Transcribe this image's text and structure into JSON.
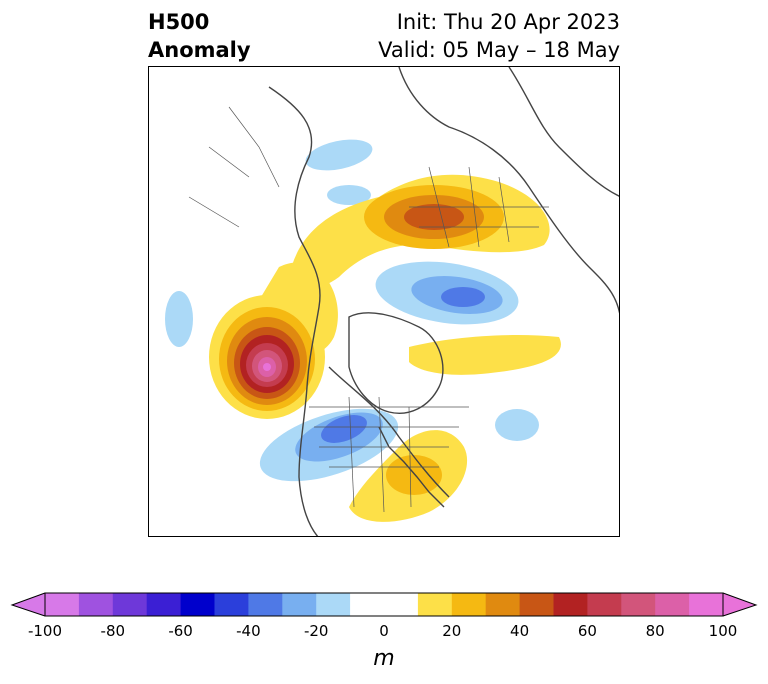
{
  "header": {
    "title_line1": "H500",
    "title_line2": "Anomaly",
    "init_text": "Init: Thu 20 Apr 2023",
    "valid_text": "Valid: 05 May – 18 May"
  },
  "colorbar": {
    "ticks": [
      "-100",
      "-80",
      "-60",
      "-40",
      "-20",
      "0",
      "20",
      "40",
      "60",
      "80",
      "100"
    ],
    "units": "m",
    "min": -100,
    "max": 100,
    "step": 10,
    "extend": "both",
    "colors": [
      "#d779e8",
      "#9f52e0",
      "#6e38d9",
      "#3b1fd4",
      "#0000cc",
      "#2b3fdb",
      "#4f79e6",
      "#78aff0",
      "#abd9f7",
      "#ffffff",
      "#ffffff",
      "#fde048",
      "#f5b912",
      "#e08a10",
      "#c85615",
      "#b22222",
      "#c43c4f",
      "#d2557b",
      "#dc60a8",
      "#e872d9"
    ]
  },
  "map": {
    "projection": "north-polar-stereographic",
    "variable": "500 hPa geopotential height anomaly",
    "features": [
      {
        "name": "strong positive anomaly",
        "region": "northeast Pacific / Gulf of Alaska",
        "peak_m": 95
      },
      {
        "name": "positive anomaly",
        "region": "Scandinavia / western Russia",
        "peak_m": 45
      },
      {
        "name": "negative anomaly",
        "region": "western / central Canada & US",
        "peak_m": -50
      },
      {
        "name": "negative anomaly",
        "region": "Arctic / Barents region",
        "peak_m": -45
      },
      {
        "name": "positive anomaly",
        "region": "eastern United States",
        "peak_m": 30
      }
    ]
  }
}
